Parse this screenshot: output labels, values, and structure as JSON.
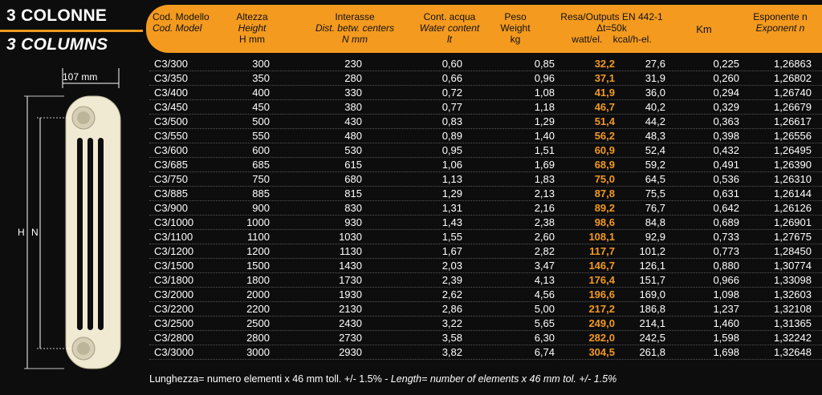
{
  "title": {
    "line1": "3 COLONNE",
    "line2": "3 COLUMNS"
  },
  "drawing": {
    "width_label": "107 mm",
    "h_label": "H",
    "n_label": "N"
  },
  "header": {
    "model": [
      "Cod. Modello",
      "Cod. Model"
    ],
    "height": [
      "Altezza",
      "Height",
      "H mm"
    ],
    "interasse": [
      "Interasse",
      "Dist. betw. centers",
      "N mm"
    ],
    "water": [
      "Cont. acqua",
      "Water content",
      "lt"
    ],
    "weight": [
      "Peso",
      "Weight",
      "kg"
    ],
    "output": [
      "Resa/Outputs EN 442-1",
      "Δt=50k",
      "watt/el.",
      "kcal/h-el."
    ],
    "km": "Km",
    "exp": [
      "Esponente n",
      "Exponent n"
    ]
  },
  "rows": [
    [
      "C3/300",
      "300",
      "230",
      "0,60",
      "0,85",
      "32,2",
      "27,6",
      "0,225",
      "1,26863"
    ],
    [
      "C3/350",
      "350",
      "280",
      "0,66",
      "0,96",
      "37,1",
      "31,9",
      "0,260",
      "1,26802"
    ],
    [
      "C3/400",
      "400",
      "330",
      "0,72",
      "1,08",
      "41,9",
      "36,0",
      "0,294",
      "1,26740"
    ],
    [
      "C3/450",
      "450",
      "380",
      "0,77",
      "1,18",
      "46,7",
      "40,2",
      "0,329",
      "1,26679"
    ],
    [
      "C3/500",
      "500",
      "430",
      "0,83",
      "1,29",
      "51,4",
      "44,2",
      "0,363",
      "1,26617"
    ],
    [
      "C3/550",
      "550",
      "480",
      "0,89",
      "1,40",
      "56,2",
      "48,3",
      "0,398",
      "1,26556"
    ],
    [
      "C3/600",
      "600",
      "530",
      "0,95",
      "1,51",
      "60,9",
      "52,4",
      "0,432",
      "1,26495"
    ],
    [
      "C3/685",
      "685",
      "615",
      "1,06",
      "1,69",
      "68,9",
      "59,2",
      "0,491",
      "1,26390"
    ],
    [
      "C3/750",
      "750",
      "680",
      "1,13",
      "1,83",
      "75,0",
      "64,5",
      "0,536",
      "1,26310"
    ],
    [
      "C3/885",
      "885",
      "815",
      "1,29",
      "2,13",
      "87,8",
      "75,5",
      "0,631",
      "1,26144"
    ],
    [
      "C3/900",
      "900",
      "830",
      "1,31",
      "2,16",
      "89,2",
      "76,7",
      "0,642",
      "1,26126"
    ],
    [
      "C3/1000",
      "1000",
      "930",
      "1,43",
      "2,38",
      "98,6",
      "84,8",
      "0,689",
      "1,26901"
    ],
    [
      "C3/1100",
      "1100",
      "1030",
      "1,55",
      "2,60",
      "108,1",
      "92,9",
      "0,733",
      "1,27675"
    ],
    [
      "C3/1200",
      "1200",
      "1130",
      "1,67",
      "2,82",
      "117,7",
      "101,2",
      "0,773",
      "1,28450"
    ],
    [
      "C3/1500",
      "1500",
      "1430",
      "2,03",
      "3,47",
      "146,7",
      "126,1",
      "0,880",
      "1,30774"
    ],
    [
      "C3/1800",
      "1800",
      "1730",
      "2,39",
      "4,13",
      "176,4",
      "151,7",
      "0,966",
      "1,33098"
    ],
    [
      "C3/2000",
      "2000",
      "1930",
      "2,62",
      "4,56",
      "196,6",
      "169,0",
      "1,098",
      "1,32603"
    ],
    [
      "C3/2200",
      "2200",
      "2130",
      "2,86",
      "5,00",
      "217,2",
      "186,8",
      "1,237",
      "1,32108"
    ],
    [
      "C3/2500",
      "2500",
      "2430",
      "3,22",
      "5,65",
      "249,0",
      "214,1",
      "1,460",
      "1,31365"
    ],
    [
      "C3/2800",
      "2800",
      "2730",
      "3,58",
      "6,30",
      "282,0",
      "242,5",
      "1,598",
      "1,32242"
    ],
    [
      "C3/3000",
      "3000",
      "2930",
      "3,82",
      "6,74",
      "304,5",
      "261,8",
      "1,698",
      "1,32648"
    ]
  ],
  "footnote": {
    "it": "Lunghezza= numero elementi x 46 mm toll. +/- 1.5% - ",
    "en": "Length= number of elements x 46 mm tol. +/- 1.5%"
  },
  "colors": {
    "accent": "#f39a1f",
    "background": "#0d0d0d",
    "radiator": "#f1ead2"
  }
}
